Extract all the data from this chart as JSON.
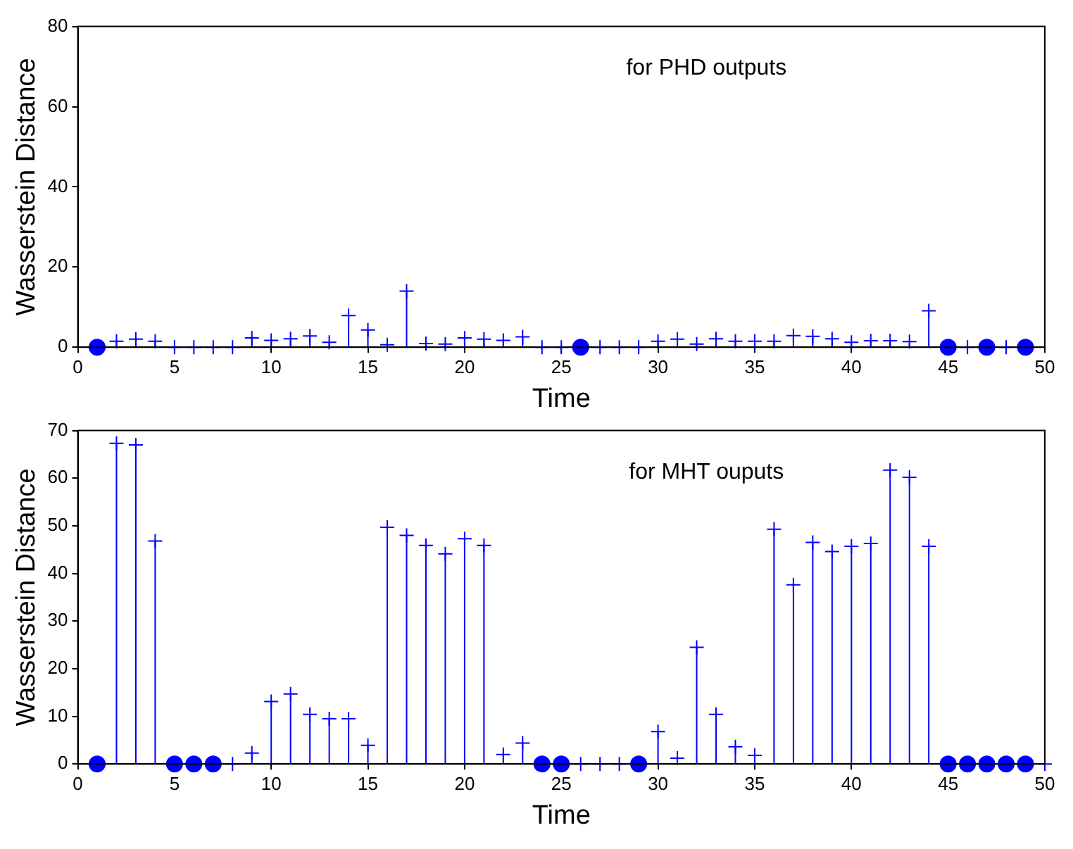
{
  "chart_data": [
    {
      "type": "lollipop",
      "xlabel": "Time",
      "ylabel": "Wasserstein Distance",
      "annotations": [
        "for PHD outputs"
      ],
      "xlim": [
        0,
        50
      ],
      "xticks": [
        0,
        5,
        10,
        15,
        20,
        25,
        30,
        35,
        40,
        45,
        50
      ],
      "ylim": [
        0,
        80
      ],
      "yticks": [
        0,
        20,
        40,
        60,
        80
      ],
      "grid": false,
      "legend": false,
      "series": [
        {
          "type": "lollipop",
          "marker": "cross",
          "color": "#0000ff",
          "x": [
            2,
            3,
            4,
            5,
            6,
            7,
            8,
            9,
            10,
            11,
            12,
            13,
            14,
            15,
            16,
            17,
            18,
            19,
            20,
            21,
            22,
            23,
            24,
            25,
            27,
            28,
            29,
            30,
            31,
            32,
            33,
            34,
            35,
            36,
            37,
            38,
            39,
            40,
            41,
            42,
            43,
            44,
            46,
            48
          ],
          "values": [
            1.5,
            2,
            1.5,
            0,
            0,
            0,
            0,
            2.3,
            1.7,
            2.1,
            2.8,
            1.2,
            7.9,
            4.3,
            0.6,
            14,
            0.9,
            0.8,
            2.3,
            2,
            1.7,
            2.6,
            0,
            0,
            0,
            0,
            0,
            1.5,
            2,
            0.8,
            2.1,
            1.5,
            1.5,
            1.5,
            2.9,
            2.7,
            2.1,
            1.2,
            1.6,
            1.6,
            1.4,
            9.1,
            0,
            0
          ]
        },
        {
          "type": "scatter",
          "marker": "circle",
          "color": "#0000ff",
          "x": [
            1,
            26,
            45,
            47,
            49
          ],
          "values": [
            0,
            0,
            0,
            0,
            0
          ]
        }
      ]
    },
    {
      "type": "lollipop",
      "xlabel": "Time",
      "ylabel": "Wasserstein Distance",
      "annotations": [
        "for MHT ouputs"
      ],
      "xlim": [
        0,
        50
      ],
      "xticks": [
        0,
        5,
        10,
        15,
        20,
        25,
        30,
        35,
        40,
        45,
        50
      ],
      "ylim": [
        0,
        70
      ],
      "yticks": [
        0,
        10,
        20,
        30,
        40,
        50,
        60,
        70
      ],
      "grid": false,
      "legend": false,
      "series": [
        {
          "type": "lollipop",
          "marker": "cross",
          "color": "#0000ff",
          "x": [
            2,
            3,
            4,
            8,
            9,
            10,
            11,
            12,
            13,
            14,
            15,
            16,
            17,
            18,
            19,
            20,
            21,
            22,
            23,
            26,
            27,
            28,
            30,
            31,
            32,
            33,
            34,
            35,
            36,
            37,
            38,
            39,
            40,
            41,
            42,
            43,
            44,
            50
          ],
          "values": [
            67.3,
            67,
            46.8,
            0,
            2.3,
            13.1,
            14.7,
            10.4,
            9.5,
            9.5,
            3.9,
            49.7,
            48,
            45.9,
            44.1,
            47.3,
            45.9,
            2,
            4.4,
            0,
            0,
            0,
            6.8,
            1.2,
            24.5,
            10.4,
            3.6,
            1.8,
            49.3,
            37.6,
            46.5,
            44.6,
            45.7,
            46.3,
            61.7,
            60.2,
            45.7,
            0
          ]
        },
        {
          "type": "scatter",
          "marker": "circle",
          "color": "#0000ff",
          "x": [
            1,
            5,
            6,
            7,
            24,
            25,
            29,
            45,
            46,
            47,
            48,
            49
          ],
          "values": [
            0,
            0,
            0,
            0,
            0,
            0,
            0,
            0,
            0,
            0,
            0,
            0
          ]
        }
      ]
    }
  ]
}
